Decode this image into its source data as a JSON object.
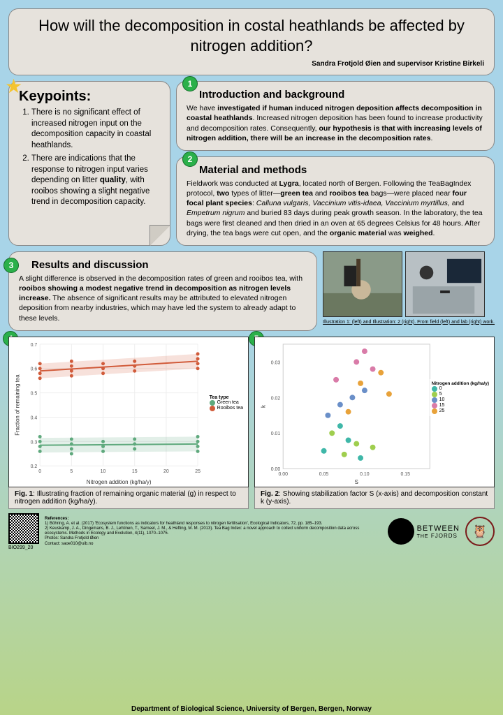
{
  "title": "How will the decomposition in costal heathlands be affected by nitrogen addition?",
  "authors": "Sandra Frotjold Øien and supervisor Kristine Birkeli",
  "keypoints": {
    "heading": "Keypoints:",
    "items": [
      "There is no significant effect of increased nitrogen input on the decomposition capacity in coastal heathlands.",
      "There are indications that the response to nitrogen input varies depending on litter quality, with rooibos showing a slight negative trend in decomposition capacity."
    ]
  },
  "intro": {
    "badge": "1",
    "heading": "Introduction and background",
    "html": "We have <b>investigated if human induced nitrogen deposition affects decomposition in coastal heathlands</b>. Increased nitrogen deposition has been found to increase productivity and decomposition rates. Consequently, <b>our hypothesis is that with increasing levels of nitrogen addition, there will be an increase in the decomposition rates</b>."
  },
  "methods": {
    "badge": "2",
    "heading": "Material and methods",
    "html": "Fieldwork was conducted at <b>Lygra</b>, located north of Bergen. Following the TeaBagIndex protocol, <b>two</b> types of litter—<b>green tea</b> and <b>rooibos tea</b> bags—were placed near <b>four focal plant species</b>: <i>Calluna vulgaris, Vaccinium vitis-idaea, Vaccinium myrtillus,</i> and <i>Empetrum nigrum</i> and buried 83 days during peak growth season. In the laboratory, the tea bags were first cleaned and then dried in an oven at 65 degrees Celsius for 48 hours. After drying, the tea bags were cut open, and the <b>organic material</b> was <b>weighed</b>."
  },
  "results": {
    "badge": "3",
    "heading": "Results and discussion",
    "html": "A slight difference is observed in the decomposition rates of green and rooibos tea, with <b>rooibos showing a modest negative trend in decomposition as nitrogen levels increase.</b> The absence of significant results may be attributed to elevated nitrogen deposition from nearby industries, which may have led the system to already adapt to these levels.",
    "photo_caption": "Illustration 1: (left) and Illustration: 2 (right). From field (left) and lab (right) work."
  },
  "fig1": {
    "badge": "4",
    "caption": "Fig. 1: Illustrating fraction of remaining organic material (g) in respect to nitrogen addition (kg/ha/y).",
    "type": "line-scatter",
    "xlabel": "Nitrogen addition (kg/ha/y)",
    "ylabel": "Fraction of remaining tea",
    "xlim": [
      0,
      25
    ],
    "ylim": [
      0.2,
      0.7
    ],
    "xticks": [
      0,
      5,
      10,
      15,
      20,
      25
    ],
    "yticks": [
      0.2,
      0.3,
      0.4,
      0.5,
      0.6,
      0.7
    ],
    "legend_title": "Tea type",
    "series": [
      {
        "name": "Green tea",
        "color": "#5fa97d",
        "marker": "circle",
        "points": [
          [
            0,
            0.28
          ],
          [
            0,
            0.3
          ],
          [
            0,
            0.26
          ],
          [
            0,
            0.32
          ],
          [
            5,
            0.27
          ],
          [
            5,
            0.29
          ],
          [
            5,
            0.31
          ],
          [
            5,
            0.25
          ],
          [
            10,
            0.28
          ],
          [
            10,
            0.3
          ],
          [
            10,
            0.26
          ],
          [
            15,
            0.29
          ],
          [
            15,
            0.27
          ],
          [
            15,
            0.31
          ],
          [
            25,
            0.3
          ],
          [
            25,
            0.28
          ],
          [
            25,
            0.32
          ],
          [
            25,
            0.26
          ]
        ],
        "trend": [
          [
            0,
            0.285
          ],
          [
            25,
            0.29
          ]
        ],
        "band": 0.03
      },
      {
        "name": "Rooibos tea",
        "color": "#d15b3a",
        "marker": "circle",
        "points": [
          [
            0,
            0.58
          ],
          [
            0,
            0.6
          ],
          [
            0,
            0.62
          ],
          [
            0,
            0.56
          ],
          [
            5,
            0.59
          ],
          [
            5,
            0.61
          ],
          [
            5,
            0.57
          ],
          [
            5,
            0.63
          ],
          [
            10,
            0.6
          ],
          [
            10,
            0.58
          ],
          [
            10,
            0.62
          ],
          [
            15,
            0.61
          ],
          [
            15,
            0.59
          ],
          [
            15,
            0.63
          ],
          [
            25,
            0.62
          ],
          [
            25,
            0.64
          ],
          [
            25,
            0.6
          ],
          [
            25,
            0.66
          ]
        ],
        "trend": [
          [
            0,
            0.59
          ],
          [
            25,
            0.63
          ]
        ],
        "band": 0.03
      }
    ],
    "background": "#ffffff",
    "grid": "#eeeeee"
  },
  "fig2": {
    "badge": "5",
    "caption": "Fig. 2: Showing stabilization factor S (x-axis) and decomposition constant k (y-axis).",
    "type": "scatter",
    "xlabel": "S",
    "ylabel": "k",
    "xlim": [
      0.0,
      0.18
    ],
    "ylim": [
      0.0,
      0.035
    ],
    "xticks": [
      0.0,
      0.05,
      0.1,
      0.15
    ],
    "yticks": [
      0.0,
      0.01,
      0.02,
      0.03
    ],
    "legend_title": "Nitrogen addition (kg/ha/y)",
    "groups": [
      {
        "name": "0",
        "color": "#3fb7a8",
        "points": [
          [
            0.05,
            0.005
          ],
          [
            0.08,
            0.008
          ],
          [
            0.095,
            0.003
          ],
          [
            0.07,
            0.012
          ]
        ]
      },
      {
        "name": "5",
        "color": "#9fce4e",
        "points": [
          [
            0.06,
            0.01
          ],
          [
            0.09,
            0.007
          ],
          [
            0.11,
            0.006
          ],
          [
            0.075,
            0.004
          ]
        ]
      },
      {
        "name": "10",
        "color": "#6a8fc8",
        "points": [
          [
            0.07,
            0.018
          ],
          [
            0.1,
            0.022
          ],
          [
            0.055,
            0.015
          ],
          [
            0.085,
            0.02
          ]
        ]
      },
      {
        "name": "15",
        "color": "#d97ba8",
        "points": [
          [
            0.09,
            0.03
          ],
          [
            0.11,
            0.028
          ],
          [
            0.065,
            0.025
          ],
          [
            0.1,
            0.033
          ]
        ]
      },
      {
        "name": "25",
        "color": "#e8a23a",
        "points": [
          [
            0.12,
            0.027
          ],
          [
            0.095,
            0.024
          ],
          [
            0.08,
            0.016
          ],
          [
            0.13,
            0.021
          ]
        ]
      }
    ],
    "background": "#ffffff"
  },
  "footer": {
    "references_label": "References:",
    "ref1": "1) Böhring, A. et al. (2017) 'Ecosystem functions as indicators for heathland responses to nitrogen fertilisation', Ecological Indicators, 72, pp. 185–193.",
    "ref2": "2) Keuskamp, J. A., Dingemans, B. J., Lehtinen, T., Sarneel, J. M., & Hefting, M. M. (2013). Tea Bag Index: a novel approach to collect uniform decomposition data across ecosystems. Methods in Ecology and Evolution, 4(11), 1070–1075.",
    "photos_credit": "Photos: Sandra Frotjold Øien",
    "contact": "Contact: saoe010@uib.no",
    "course": "BIO299_20",
    "logo_text_top": "BETWEEN",
    "logo_text_bot": "THE FJORDS",
    "dept": "Department of Biological Science, University of Bergen, Bergen, Norway"
  }
}
